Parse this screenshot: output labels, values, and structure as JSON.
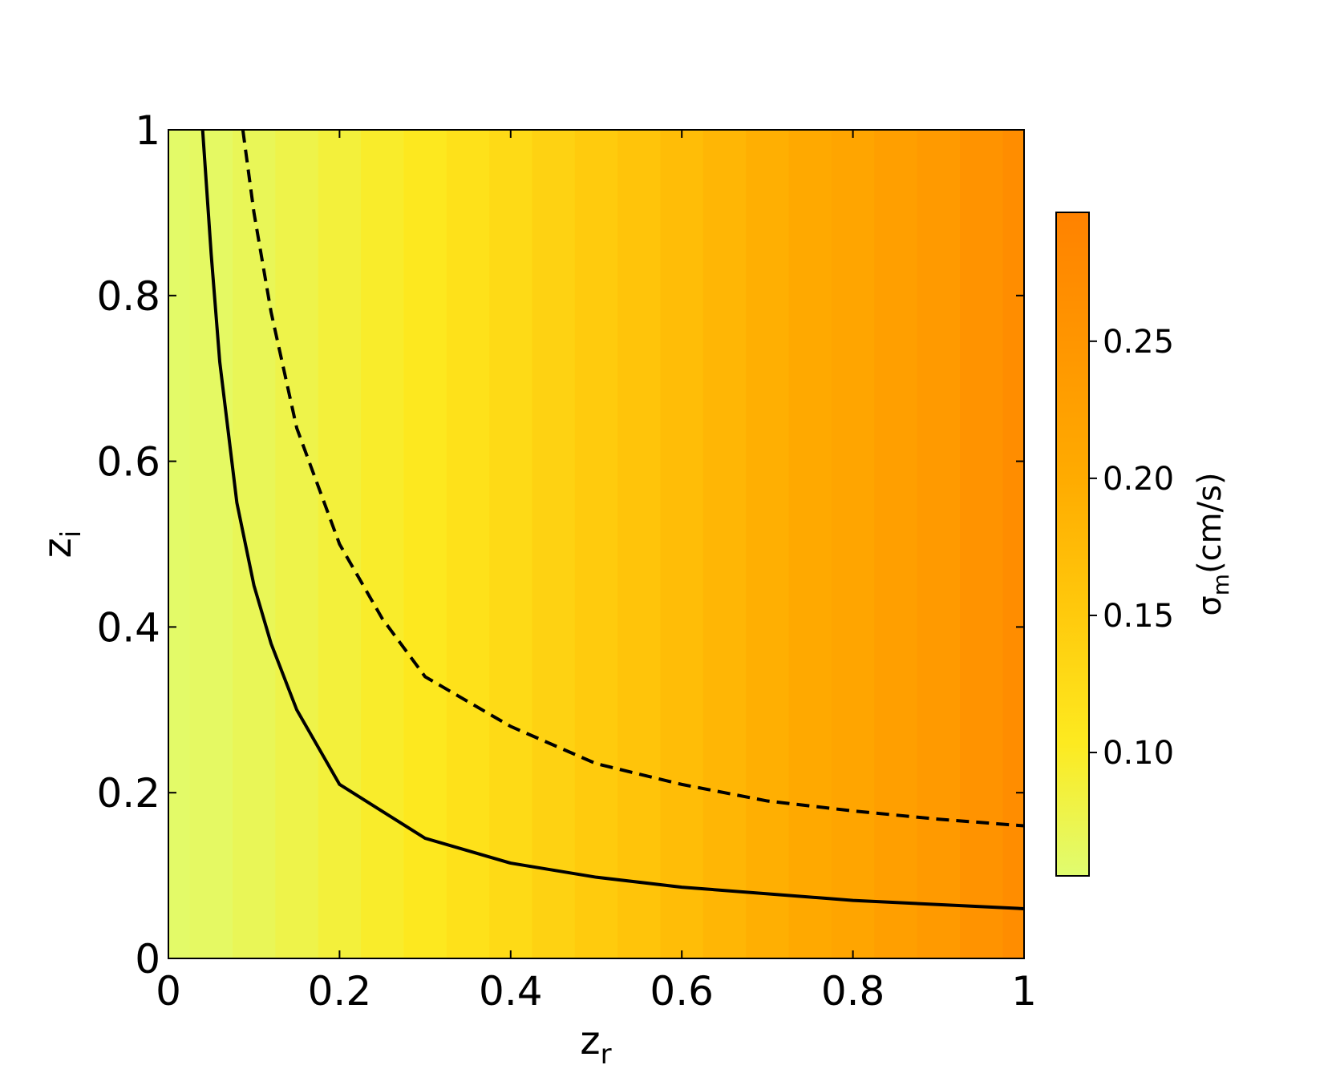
{
  "chart_data": {
    "type": "heatmap",
    "xlabel": {
      "base": "z",
      "sub": "r"
    },
    "ylabel": {
      "base": "z",
      "sub": "i"
    },
    "xlim": [
      0,
      1
    ],
    "xticks": [
      0,
      0.2,
      0.4,
      0.6,
      0.8,
      1
    ],
    "ylim": [
      0,
      1
    ],
    "yticks": [
      0,
      0.2,
      0.4,
      0.6,
      0.8,
      1
    ],
    "heatmap": {
      "x": [
        0,
        0.05,
        0.1,
        0.15,
        0.2,
        0.25,
        0.3,
        0.35,
        0.4,
        0.45,
        0.5,
        0.55,
        0.6,
        0.65,
        0.7,
        0.75,
        0.8,
        0.85,
        0.9,
        0.95,
        1.0
      ],
      "values": [
        0.06,
        0.063,
        0.07,
        0.078,
        0.087,
        0.097,
        0.107,
        0.117,
        0.127,
        0.138,
        0.149,
        0.16,
        0.171,
        0.182,
        0.193,
        0.204,
        0.215,
        0.227,
        0.24,
        0.255,
        0.27
      ]
    },
    "colormap": [
      "#e0fc70",
      "#fdea20",
      "#ffc90c",
      "#ffab00",
      "#ff9600",
      "#ff8200"
    ],
    "colorbar": {
      "label": {
        "base": "σ",
        "sub": "m",
        "rest": "(cm/s)"
      },
      "lim": [
        0.055,
        0.297
      ],
      "ticks": [
        {
          "value": 0.1,
          "label": "0.10"
        },
        {
          "value": 0.15,
          "label": "0.15"
        },
        {
          "value": 0.2,
          "label": "0.20"
        },
        {
          "value": 0.25,
          "label": "0.25"
        }
      ]
    },
    "series": [
      {
        "style": "solid",
        "color": "#000000",
        "x": [
          0.04,
          0.05,
          0.06,
          0.08,
          0.1,
          0.12,
          0.15,
          0.2,
          0.3,
          0.4,
          0.5,
          0.6,
          0.8,
          1.0
        ],
        "y": [
          1.0,
          0.85,
          0.72,
          0.55,
          0.45,
          0.38,
          0.3,
          0.21,
          0.145,
          0.115,
          0.098,
          0.086,
          0.07,
          0.06
        ]
      },
      {
        "style": "dashed",
        "color": "#000000",
        "x": [
          0.087,
          0.1,
          0.12,
          0.15,
          0.2,
          0.25,
          0.3,
          0.4,
          0.5,
          0.6,
          0.7,
          0.8,
          0.9,
          1.0
        ],
        "y": [
          1.0,
          0.9,
          0.78,
          0.64,
          0.5,
          0.41,
          0.34,
          0.28,
          0.235,
          0.21,
          0.19,
          0.178,
          0.168,
          0.16
        ]
      }
    ]
  }
}
